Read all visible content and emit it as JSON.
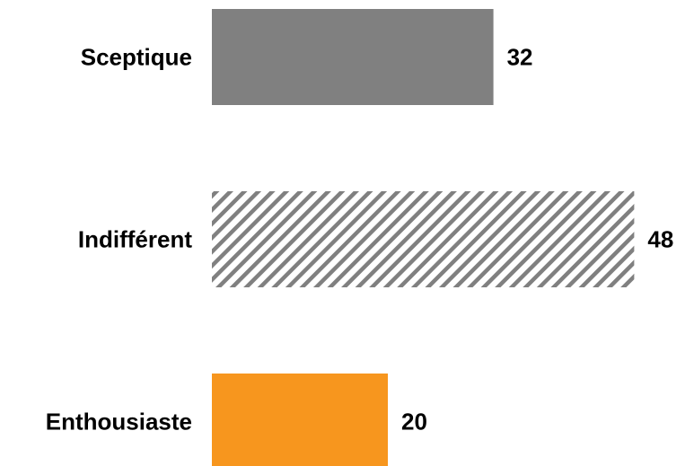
{
  "chart_data": {
    "type": "bar",
    "orientation": "horizontal",
    "categories": [
      "Sceptique",
      "Indifférent",
      "Enthousiaste"
    ],
    "values": [
      32,
      48,
      20
    ],
    "bar_styles": [
      {
        "fill": "#808080",
        "pattern": "solid"
      },
      {
        "fill": "#808080",
        "pattern": "diagonal-hatch"
      },
      {
        "fill": "#F7961E",
        "pattern": "solid"
      }
    ],
    "title": "",
    "xlabel": "",
    "ylabel": "",
    "xlim": [
      0,
      48
    ],
    "grid": false,
    "legend": "none"
  }
}
